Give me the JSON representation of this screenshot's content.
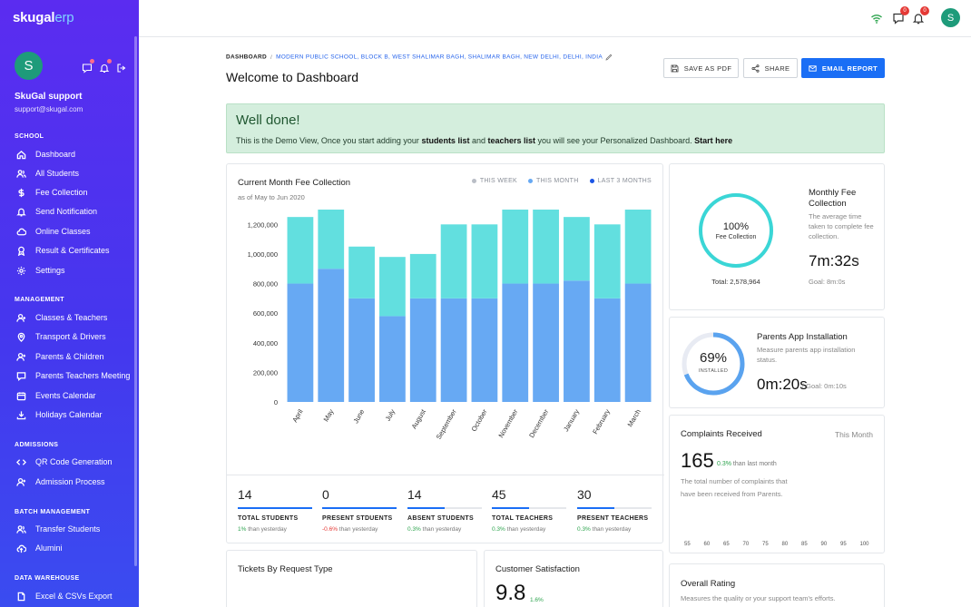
{
  "app": {
    "logo_main": "skugal",
    "logo_accent": "erp"
  },
  "user": {
    "initial": "S",
    "name": "SkuGal support",
    "email": "support@skugal.com"
  },
  "sidebar": {
    "sections": [
      {
        "title": "SCHOOL",
        "items": [
          "Dashboard",
          "All Students",
          "Fee Collection",
          "Send Notification",
          "Online Classes",
          "Result & Certificates",
          "Settings"
        ]
      },
      {
        "title": "MANAGEMENT",
        "items": [
          "Classes & Teachers",
          "Transport & Drivers",
          "Parents & Children",
          "Parents Teachers Meeting",
          "Events Calendar",
          "Holidays Calendar"
        ]
      },
      {
        "title": "ADMISSIONS",
        "items": [
          "QR Code Generation",
          "Admission Process"
        ]
      },
      {
        "title": "BATCH MANAGEMENT",
        "items": [
          "Transfer Students",
          "Alumini"
        ]
      },
      {
        "title": "DATA WAREHOUSE",
        "items": [
          "Excel & CSVs Export"
        ]
      }
    ]
  },
  "topbar": {
    "messages_count": "0",
    "notifications_count": "0",
    "avatar_initial": "S"
  },
  "breadcrumb": {
    "root": "DASHBOARD",
    "sep": "/",
    "path": "MODERN PUBLIC SCHOOL, BLOCK B, WEST SHALIMAR BAGH, SHALIMAR BAGH, NEW DELHI, DELHI, INDIA"
  },
  "page": {
    "title": "Welcome to Dashboard"
  },
  "actions": {
    "pdf": "SAVE AS PDF",
    "share": "SHARE",
    "email": "EMAIL REPORT"
  },
  "alert": {
    "title": "Well done!",
    "t1": "This is the Demo View, Once you start adding your ",
    "b1": "students list",
    "t2": " and ",
    "b2": "teachers list",
    "t3": " you will see your Personalized Dashboard. ",
    "b3": "Start here"
  },
  "fee_chart": {
    "title": "Current Month Fee Collection",
    "subtitle": "as of May to Jun 2020",
    "legend": [
      "THIS WEEK",
      "THIS MONTH",
      "LAST 3 MONTHS"
    ]
  },
  "chart_data": {
    "type": "bar",
    "stacked": true,
    "categories": [
      "April",
      "May",
      "June",
      "July",
      "August",
      "September",
      "October",
      "November",
      "December",
      "January",
      "February",
      "March"
    ],
    "series": [
      {
        "name": "THIS MONTH",
        "values": [
          800000,
          900000,
          700000,
          580000,
          700000,
          700000,
          700000,
          800000,
          800000,
          820000,
          700000,
          800000
        ]
      },
      {
        "name": "THIS WEEK",
        "values": [
          450000,
          400000,
          350000,
          400000,
          300000,
          500000,
          500000,
          500000,
          500000,
          430000,
          500000,
          500000
        ]
      }
    ],
    "yticks": [
      "0",
      "200,000",
      "400,000",
      "600,000",
      "800,000",
      "1,000,000",
      "1,200,000"
    ],
    "ylim": [
      0,
      1300000
    ],
    "colors": {
      "THIS WEEK": "#62dfdf",
      "THIS MONTH": "#67a9f3",
      "LAST 3 MONTHS": "#1a55e6",
      "legend_week": "#b9bec6",
      "legend_month": "#67a9f3"
    }
  },
  "stats": [
    {
      "value": "14",
      "label": "TOTAL STUDENTS",
      "delta": "1%",
      "dir": "up",
      "suffix": " than yesterday",
      "fill": 1.0
    },
    {
      "value": "0",
      "label": "PRESENT STDUENTS",
      "delta": "-0.6%",
      "dir": "down",
      "suffix": " than yesterday",
      "fill": 1.0
    },
    {
      "value": "14",
      "label": "ABSENT STUDENTS",
      "delta": "0.3%",
      "dir": "up",
      "suffix": " than yesterday",
      "fill": 0.5
    },
    {
      "value": "45",
      "label": "TOTAL TEACHERS",
      "delta": "0.3%",
      "dir": "up",
      "suffix": " than yesterday",
      "fill": 0.5
    },
    {
      "value": "30",
      "label": "PRESENT TEACHERS",
      "delta": "0.3%",
      "dir": "up",
      "suffix": " than yesterday",
      "fill": 0.5
    }
  ],
  "monthly_fee": {
    "percent": "100%",
    "label": "Fee Collection",
    "total": "Total: 2,578,964",
    "title1": "Monthly Fee",
    "title2": "Collection",
    "desc": "The average time taken to complete fee collection.",
    "time": "7m:32s",
    "time_suffix": "/",
    "goal": "Goal: 8m:0s",
    "fill": 1.0
  },
  "parents_app": {
    "percent": "69%",
    "label": "INSTALLED",
    "title": "Parents App Installation",
    "desc": "Measure parents app installation status.",
    "time": "0m:20s",
    "goal": "/ Goal: 0m:10s",
    "fill": 0.69
  },
  "complaints": {
    "title": "Complaints Received",
    "period": "This Month",
    "value": "165",
    "delta": "0.3%",
    "delta_suffix": " than last month",
    "desc": "The total number of complaints that have been received from Parents.",
    "scale": [
      "55",
      "60",
      "65",
      "70",
      "75",
      "80",
      "85",
      "90",
      "95",
      "100"
    ]
  },
  "tickets": {
    "title": "Tickets By Request Type"
  },
  "satisfaction": {
    "title": "Customer Satisfaction",
    "value": "9.8",
    "delta": "1.6%"
  },
  "rating": {
    "title": "Overall Rating",
    "desc": "Measures the quality or your support team's efforts."
  }
}
